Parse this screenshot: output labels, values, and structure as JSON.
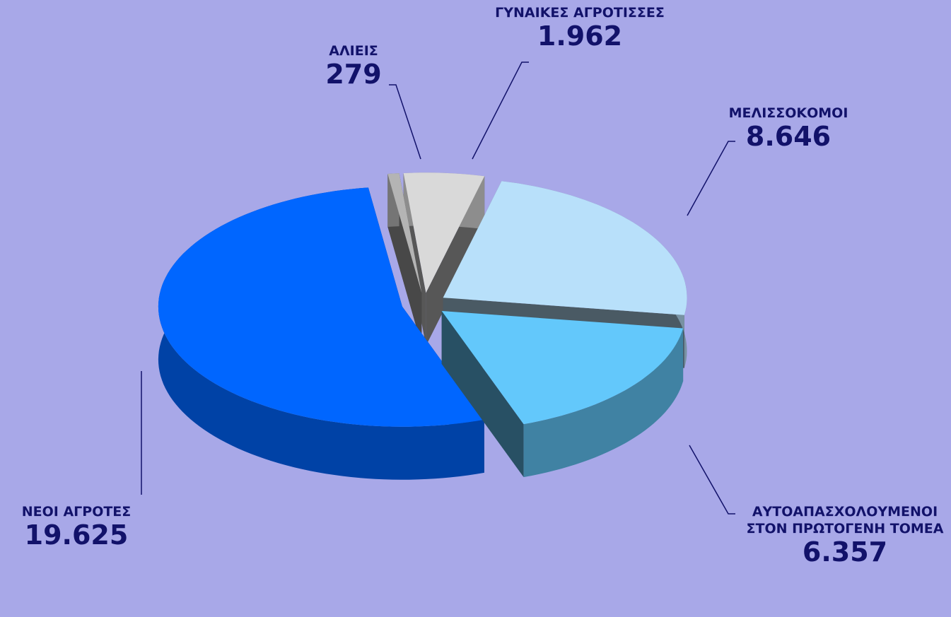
{
  "chart_data": {
    "type": "pie",
    "categories": [
      "ΑΛΙΕΙΣ",
      "ΓΥΝΑΙΚΕΣ ΑΓΡΟΤΙΣΣΕΣ",
      "ΜΕΛΙΣΣΟΚΟΜΟΙ",
      "ΑΥΤΟΑΠΑΣΧΟΛΟΥΜΕΝΟΙ ΣΤΟΝ ΠΡΩΤΟΓΕΝΗ ΤΟΜΕΑ",
      "ΝΕΟΙ ΑΓΡΟΤΕΣ"
    ],
    "values": [
      279,
      1962,
      8646,
      6357,
      19625
    ],
    "value_labels": [
      "279",
      "1.962",
      "8.646",
      "6.357",
      "19.625"
    ],
    "colors": [
      "#b4b4b4",
      "#d9d9d9",
      "#b8e0fa",
      "#63c8fb",
      "#0066ff"
    ]
  }
}
